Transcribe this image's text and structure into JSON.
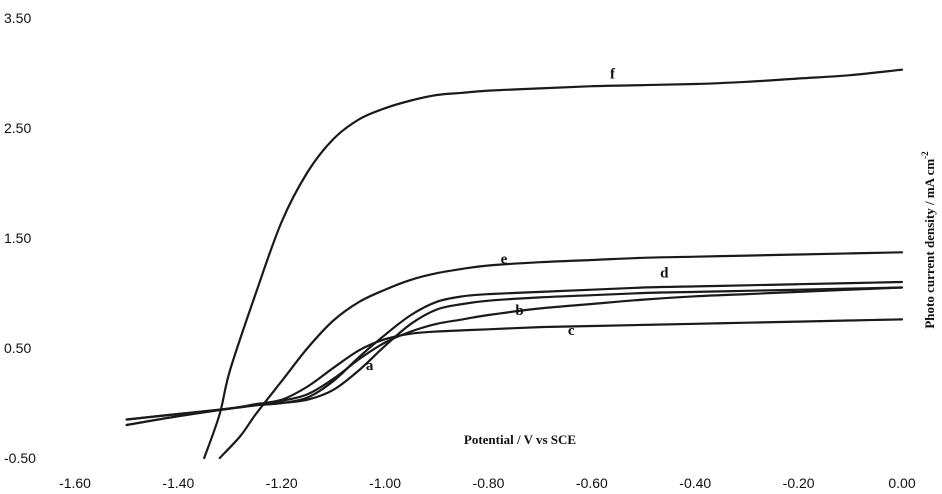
{
  "chart_data": {
    "type": "line",
    "xlabel": "Potential / V vs SCE",
    "ylabel": "Photo current density / mA cm",
    "ylabel_superscript": "-2",
    "xlim": [
      -1.6,
      0.0
    ],
    "ylim": [
      -0.5,
      3.5
    ],
    "x_ticks": [
      "-1.60",
      "-1.40",
      "-1.20",
      "-1.00",
      "-0.80",
      "-0.60",
      "-0.40",
      "-0.20",
      "0.00"
    ],
    "y_ticks": [
      "-0.50",
      "0.50",
      "1.50",
      "2.50",
      "3.50"
    ],
    "grid": false,
    "legend": "none",
    "series": [
      {
        "name": "a",
        "x": [
          -1.5,
          -1.4,
          -1.3,
          -1.25,
          -1.2,
          -1.15,
          -1.1,
          -1.05,
          -1.0,
          -0.95,
          -0.9,
          -0.85,
          -0.8,
          -0.7,
          -0.6,
          -0.5,
          -0.4,
          -0.3,
          -0.2,
          -0.1,
          0.0
        ],
        "y": [
          -0.2,
          -0.12,
          -0.05,
          -0.02,
          0.0,
          0.03,
          0.12,
          0.3,
          0.52,
          0.72,
          0.85,
          0.9,
          0.93,
          0.96,
          0.98,
          1.0,
          1.01,
          1.02,
          1.03,
          1.04,
          1.05
        ]
      },
      {
        "name": "b",
        "x": [
          -1.5,
          -1.4,
          -1.3,
          -1.25,
          -1.2,
          -1.15,
          -1.1,
          -1.05,
          -1.0,
          -0.95,
          -0.9,
          -0.85,
          -0.8,
          -0.7,
          -0.6,
          -0.5,
          -0.4,
          -0.3,
          -0.2,
          -0.1,
          0.0
        ],
        "y": [
          -0.15,
          -0.1,
          -0.05,
          -0.02,
          0.02,
          0.08,
          0.22,
          0.4,
          0.55,
          0.65,
          0.72,
          0.76,
          0.8,
          0.86,
          0.9,
          0.94,
          0.97,
          0.99,
          1.01,
          1.03,
          1.05
        ]
      },
      {
        "name": "c",
        "x": [
          -1.5,
          -1.4,
          -1.3,
          -1.25,
          -1.2,
          -1.15,
          -1.1,
          -1.05,
          -1.0,
          -0.95,
          -0.9,
          -0.8,
          -0.7,
          -0.6,
          -0.5,
          -0.4,
          -0.3,
          -0.2,
          -0.1,
          0.0
        ],
        "y": [
          -0.15,
          -0.1,
          -0.05,
          -0.01,
          0.03,
          0.15,
          0.32,
          0.48,
          0.58,
          0.63,
          0.65,
          0.67,
          0.69,
          0.7,
          0.71,
          0.72,
          0.73,
          0.74,
          0.75,
          0.76
        ]
      },
      {
        "name": "d",
        "x": [
          -1.5,
          -1.4,
          -1.3,
          -1.25,
          -1.2,
          -1.15,
          -1.1,
          -1.05,
          -1.0,
          -0.95,
          -0.9,
          -0.85,
          -0.8,
          -0.7,
          -0.6,
          -0.5,
          -0.4,
          -0.3,
          -0.2,
          -0.1,
          0.0
        ],
        "y": [
          -0.2,
          -0.12,
          -0.05,
          -0.02,
          0.0,
          0.05,
          0.2,
          0.42,
          0.62,
          0.8,
          0.92,
          0.97,
          0.99,
          1.01,
          1.03,
          1.05,
          1.06,
          1.07,
          1.08,
          1.09,
          1.1
        ]
      },
      {
        "name": "e",
        "x": [
          -1.32,
          -1.28,
          -1.25,
          -1.2,
          -1.15,
          -1.1,
          -1.05,
          -1.0,
          -0.95,
          -0.9,
          -0.85,
          -0.8,
          -0.7,
          -0.6,
          -0.5,
          -0.4,
          -0.3,
          -0.2,
          -0.1,
          0.0
        ],
        "y": [
          -0.5,
          -0.3,
          -0.1,
          0.2,
          0.5,
          0.75,
          0.92,
          1.03,
          1.12,
          1.18,
          1.22,
          1.25,
          1.28,
          1.3,
          1.32,
          1.33,
          1.34,
          1.35,
          1.36,
          1.37
        ]
      },
      {
        "name": "f",
        "x": [
          -1.35,
          -1.32,
          -1.3,
          -1.25,
          -1.2,
          -1.15,
          -1.1,
          -1.05,
          -1.0,
          -0.95,
          -0.9,
          -0.85,
          -0.8,
          -0.7,
          -0.6,
          -0.5,
          -0.4,
          -0.3,
          -0.2,
          -0.1,
          0.0
        ],
        "y": [
          -0.5,
          -0.1,
          0.3,
          1.0,
          1.65,
          2.1,
          2.4,
          2.58,
          2.68,
          2.75,
          2.8,
          2.82,
          2.84,
          2.86,
          2.88,
          2.89,
          2.9,
          2.92,
          2.95,
          2.98,
          3.03
        ]
      }
    ],
    "annotations": [
      {
        "text": "a",
        "x": -1.03,
        "y": 0.3
      },
      {
        "text": "b",
        "x": -0.74,
        "y": 0.8
      },
      {
        "text": "c",
        "x": -0.64,
        "y": 0.62
      },
      {
        "text": "d",
        "x": -0.46,
        "y": 1.14
      },
      {
        "text": "e",
        "x": -0.77,
        "y": 1.27
      },
      {
        "text": "f",
        "x": -0.56,
        "y": 2.95
      }
    ]
  }
}
